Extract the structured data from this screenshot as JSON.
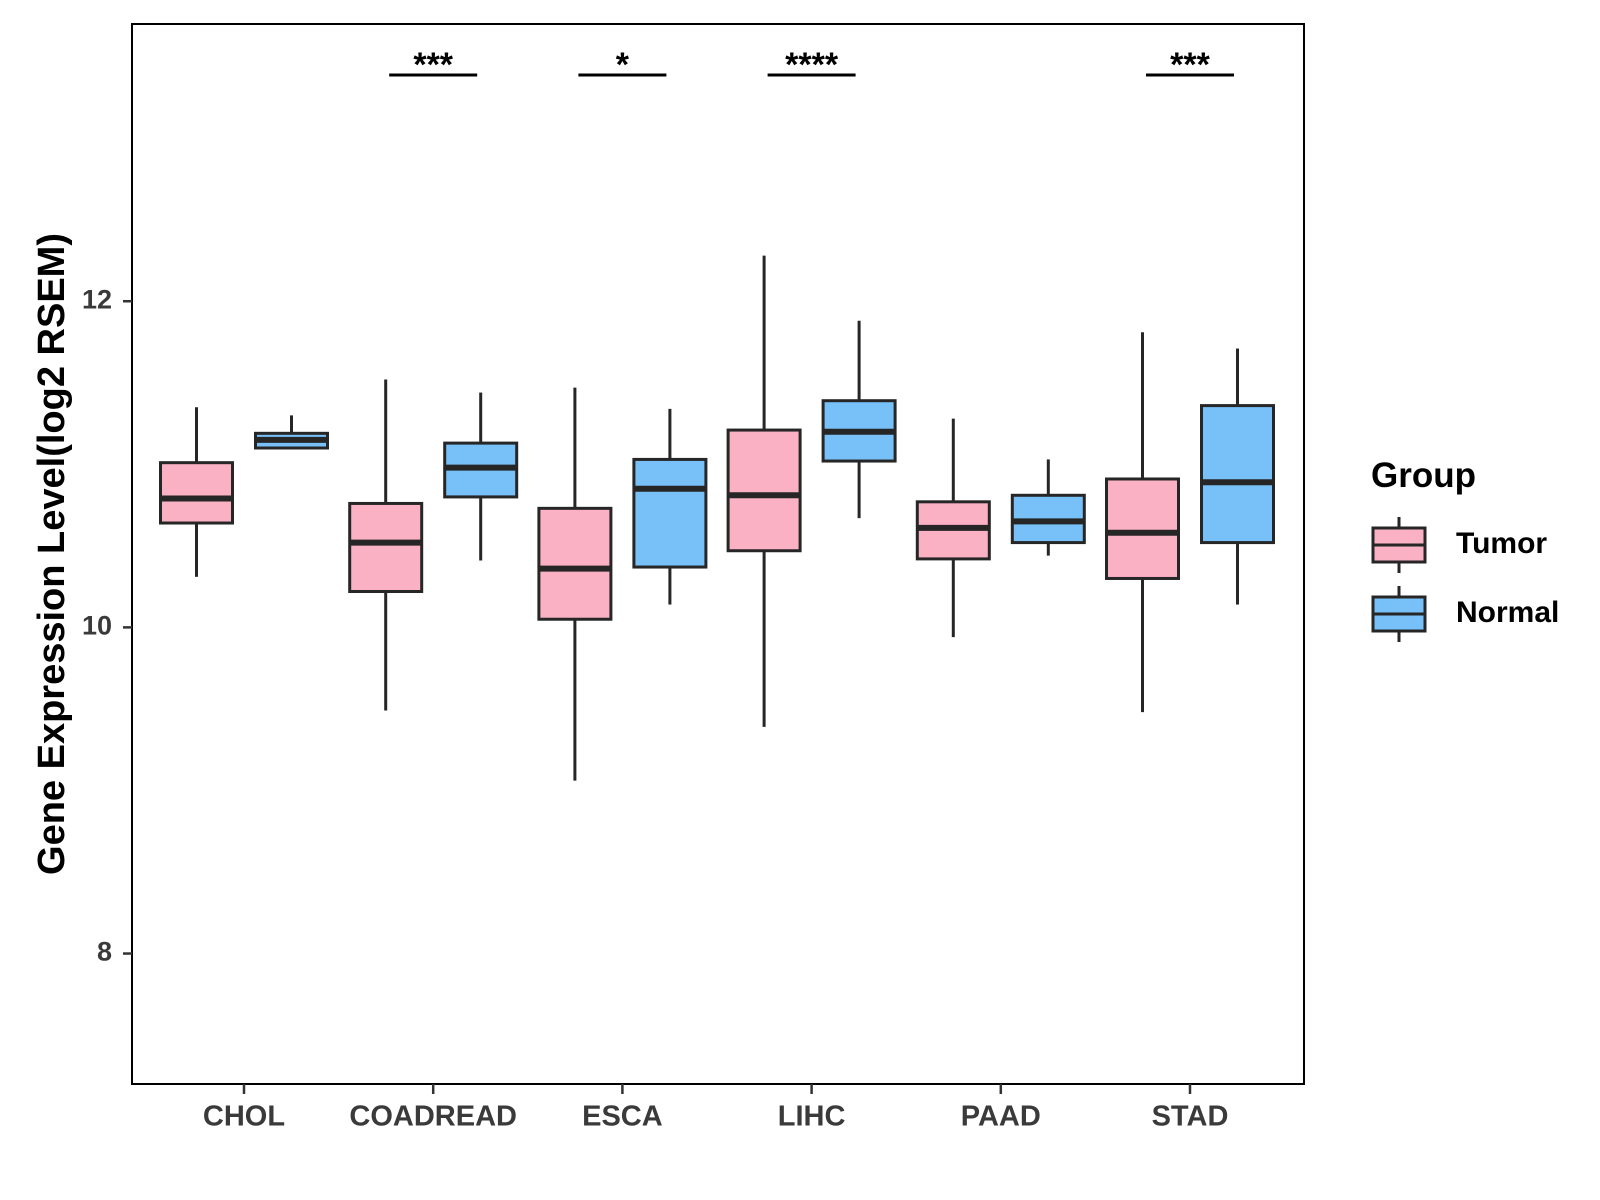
{
  "chart_data": {
    "type": "boxplot",
    "xlabel": "",
    "ylabel": "Gene Expression Level(log2 RSEM)",
    "ylim": [
      7.2,
      13.7
    ],
    "yticks": [
      8,
      10,
      12
    ],
    "grid": false,
    "legend": {
      "title": "Group",
      "position": "right",
      "items": [
        {
          "name": "Tumor",
          "color": "#FBB1C4"
        },
        {
          "name": "Normal",
          "color": "#77C1F8"
        }
      ]
    },
    "categories": [
      "CHOL",
      "COADREAD",
      "ESCA",
      "LIHC",
      "PAAD",
      "STAD"
    ],
    "series": [
      {
        "name": "Tumor",
        "color": "#FBB1C4",
        "boxes": [
          {
            "whisker_low": 10.31,
            "q1": 10.64,
            "median": 10.79,
            "q3": 11.01,
            "whisker_high": 11.35
          },
          {
            "whisker_low": 9.49,
            "q1": 10.22,
            "median": 10.52,
            "q3": 10.76,
            "whisker_high": 11.52
          },
          {
            "whisker_low": 9.06,
            "q1": 10.05,
            "median": 10.36,
            "q3": 10.73,
            "whisker_high": 11.47
          },
          {
            "whisker_low": 9.39,
            "q1": 10.47,
            "median": 10.81,
            "q3": 11.21,
            "whisker_high": 12.28
          },
          {
            "whisker_low": 9.94,
            "q1": 10.42,
            "median": 10.61,
            "q3": 10.77,
            "whisker_high": 11.28
          },
          {
            "whisker_low": 9.48,
            "q1": 10.3,
            "median": 10.58,
            "q3": 10.91,
            "whisker_high": 11.81
          }
        ]
      },
      {
        "name": "Normal",
        "color": "#77C1F8",
        "boxes": [
          {
            "whisker_low": 11.1,
            "q1": 11.1,
            "median": 11.15,
            "q3": 11.19,
            "whisker_high": 11.3
          },
          {
            "whisker_low": 10.41,
            "q1": 10.8,
            "median": 10.98,
            "q3": 11.13,
            "whisker_high": 11.44
          },
          {
            "whisker_low": 10.14,
            "q1": 10.37,
            "median": 10.85,
            "q3": 11.03,
            "whisker_high": 11.34
          },
          {
            "whisker_low": 10.67,
            "q1": 11.02,
            "median": 11.2,
            "q3": 11.39,
            "whisker_high": 11.88
          },
          {
            "whisker_low": 10.44,
            "q1": 10.52,
            "median": 10.65,
            "q3": 10.81,
            "whisker_high": 11.03
          },
          {
            "whisker_low": 10.14,
            "q1": 10.52,
            "median": 10.89,
            "q3": 11.36,
            "whisker_high": 11.71
          }
        ]
      }
    ],
    "significance": [
      {
        "category": "COADREAD",
        "label": "***"
      },
      {
        "category": "ESCA",
        "label": "*"
      },
      {
        "category": "LIHC",
        "label": "****"
      },
      {
        "category": "STAD",
        "label": "***"
      }
    ]
  }
}
